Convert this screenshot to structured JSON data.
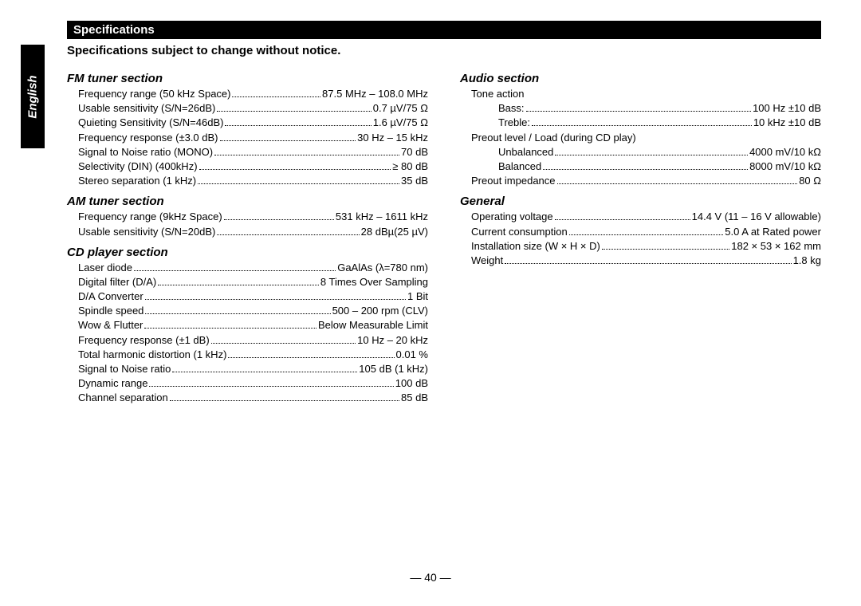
{
  "side_tab": "English",
  "header": "Specifications",
  "subheader": "Specifications subject to change without notice.",
  "page_number": "— 40 —",
  "left_col": [
    {
      "title": "FM tuner section",
      "rows": [
        {
          "label": "Frequency range (50 kHz Space)",
          "value": "87.5 MHz – 108.0 MHz",
          "indent": false
        },
        {
          "label": "Usable sensitivity (S/N=26dB)",
          "value": "0.7 µV/75 Ω",
          "indent": false
        },
        {
          "label": "Quieting Sensitivity (S/N=46dB)",
          "value": "1.6 µV/75 Ω",
          "indent": false
        },
        {
          "label": "Frequency response (±3.0 dB)",
          "value": "30 Hz – 15 kHz",
          "indent": false
        },
        {
          "label": "Signal to Noise ratio (MONO)",
          "value": "70 dB",
          "indent": false
        },
        {
          "label": "Selectivity (DIN) (400kHz)",
          "value": "≥ 80 dB",
          "indent": false
        },
        {
          "label": "Stereo separation (1 kHz)",
          "value": "35 dB",
          "indent": false
        }
      ]
    },
    {
      "title": "AM tuner section",
      "rows": [
        {
          "label": "Frequency range (9kHz Space)",
          "value": "531 kHz – 1611 kHz",
          "indent": false
        },
        {
          "label": "Usable sensitivity (S/N=20dB)",
          "value": "28 dBµ(25 µV)",
          "indent": false
        }
      ]
    },
    {
      "title": "CD player section",
      "rows": [
        {
          "label": "Laser diode",
          "value": "GaAlAs (λ=780 nm)",
          "indent": false
        },
        {
          "label": "Digital filter (D/A)",
          "value": "8 Times Over Sampling",
          "indent": false
        },
        {
          "label": "D/A Converter",
          "value": "1 Bit",
          "indent": false
        },
        {
          "label": "Spindle speed",
          "value": "500 – 200 rpm (CLV)",
          "indent": false
        },
        {
          "label": "Wow & Flutter",
          "value": "Below Measurable Limit",
          "indent": false
        },
        {
          "label": "Frequency response (±1 dB)",
          "value": "10 Hz – 20 kHz",
          "indent": false
        },
        {
          "label": "Total harmonic distortion (1 kHz)",
          "value": "0.01 %",
          "indent": false
        },
        {
          "label": "Signal to Noise ratio",
          "value": "105 dB (1 kHz)",
          "indent": false
        },
        {
          "label": "Dynamic range",
          "value": "100 dB",
          "indent": false
        },
        {
          "label": "Channel separation",
          "value": "85 dB",
          "indent": false
        }
      ]
    }
  ],
  "right_col": [
    {
      "title": "Audio section",
      "rows": [
        {
          "label": "Tone action",
          "value": "",
          "indent": false,
          "nodots": true
        },
        {
          "label": "Bass:",
          "value": "100 Hz ±10 dB",
          "indent": true
        },
        {
          "label": "Treble:",
          "value": "10 kHz ±10 dB",
          "indent": true
        },
        {
          "label": "Preout level / Load (during CD play)",
          "value": "",
          "indent": false,
          "nodots": true
        },
        {
          "label": "Unbalanced",
          "value": "4000 mV/10 kΩ",
          "indent": true
        },
        {
          "label": "Balanced",
          "value": "8000 mV/10 kΩ",
          "indent": true
        },
        {
          "label": "Preout impedance",
          "value": "80 Ω",
          "indent": false
        }
      ]
    },
    {
      "title": "General",
      "rows": [
        {
          "label": "Operating voltage",
          "value": "14.4 V (11 – 16 V allowable)",
          "indent": false
        },
        {
          "label": "Current consumption",
          "value": "5.0 A at Rated power",
          "indent": false
        },
        {
          "label": "Installation size (W × H × D)",
          "value": "182 × 53  × 162 mm",
          "indent": false
        },
        {
          "label": "Weight",
          "value": "1.8 kg",
          "indent": false
        }
      ]
    }
  ]
}
